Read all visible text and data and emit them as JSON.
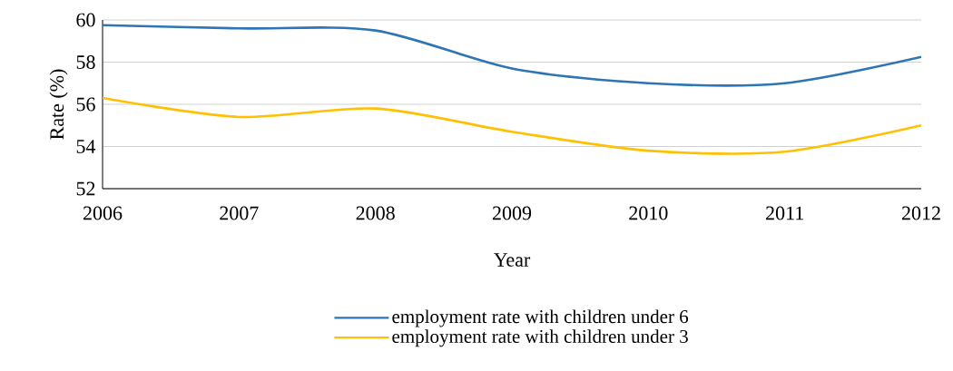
{
  "chart_data": {
    "type": "line",
    "xlabel": "Year",
    "ylabel": "Rate (%)",
    "x": [
      2006,
      2007,
      2008,
      2009,
      2010,
      2011,
      2012
    ],
    "series": [
      {
        "name": "employment  rate with children under 6",
        "color": "#2e75b6",
        "values": [
          59.75,
          59.6,
          59.5,
          57.7,
          57.0,
          57.0,
          58.25
        ]
      },
      {
        "name": "employment rate with children under 3",
        "color": "#ffc000",
        "values": [
          56.3,
          55.4,
          55.8,
          54.7,
          53.8,
          53.75,
          55.0
        ]
      }
    ],
    "xlim": [
      2006,
      2012
    ],
    "xticks": [
      2006,
      2007,
      2008,
      2009,
      2010,
      2011,
      2012
    ],
    "ylim": [
      52,
      60
    ],
    "yticks": [
      52,
      54,
      56,
      58,
      60
    ],
    "grid": "y",
    "legend": "bottom",
    "marker": "none",
    "line_style": "solid"
  }
}
